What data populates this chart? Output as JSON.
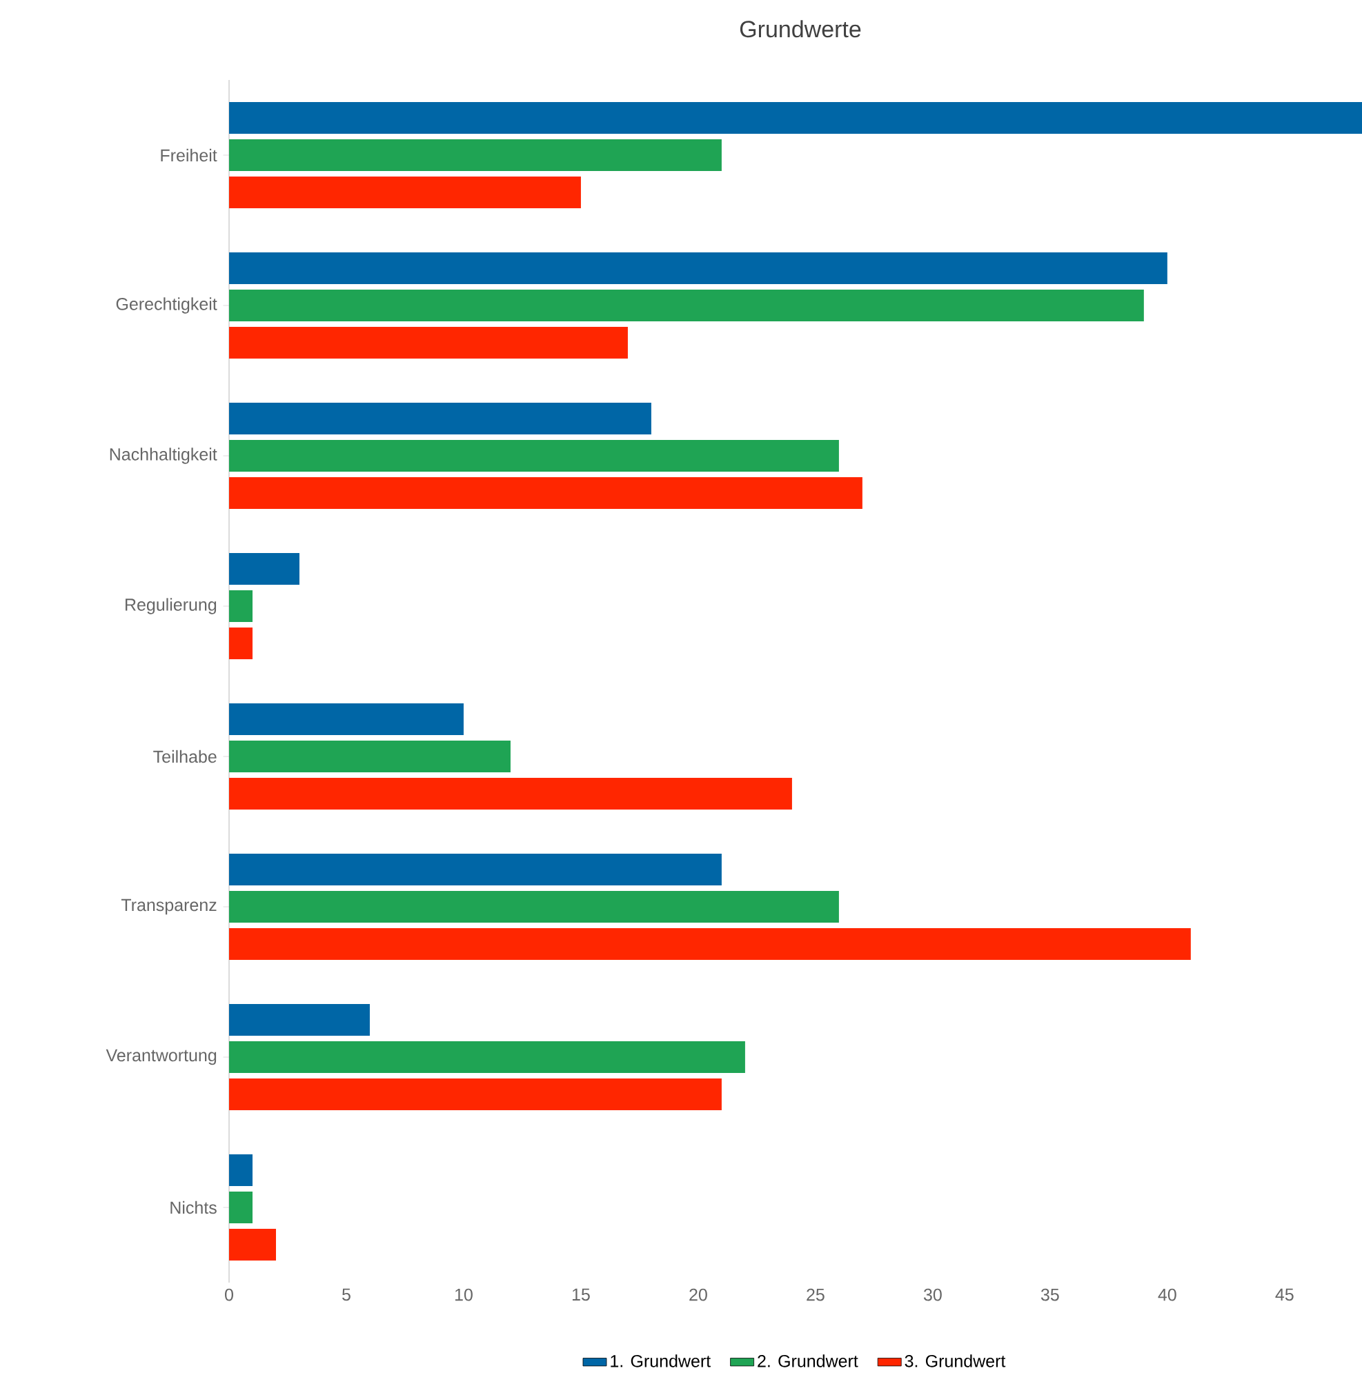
{
  "chart_data": {
    "type": "bar",
    "orientation": "horizontal",
    "title": "Grundwerte",
    "categories": [
      "Freiheit",
      "Gerechtigkeit",
      "Nachhaltigkeit",
      "Regulierung",
      "Teilhabe",
      "Transparenz",
      "Verantwortung",
      "Nichts"
    ],
    "series": [
      {
        "name": "1. Grundwert",
        "color": "#0066a6",
        "values": [
          48.3,
          40,
          18,
          3,
          10,
          21,
          6,
          1
        ]
      },
      {
        "name": "2. Grundwert",
        "color": "#1fa454",
        "values": [
          21,
          39,
          26,
          1,
          12,
          26,
          22,
          1
        ]
      },
      {
        "name": "3. Grundwert",
        "color": "#ff2600",
        "values": [
          15,
          17,
          27,
          1,
          24,
          41,
          21,
          2
        ]
      }
    ],
    "xlim": [
      0,
      48.3
    ],
    "xticks": [
      0,
      5,
      10,
      15,
      20,
      25,
      30,
      35,
      40,
      45
    ],
    "grid": false,
    "legend": "bottom"
  }
}
